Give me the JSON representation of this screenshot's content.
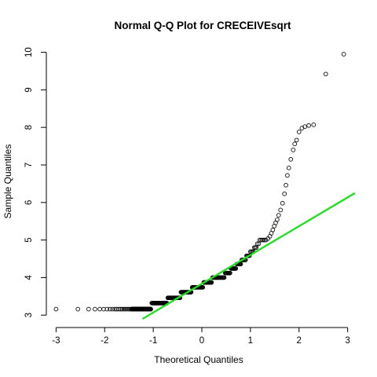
{
  "chart_data": {
    "type": "scatter",
    "title": "Normal Q-Q Plot for CRECEIVEsqrt",
    "xlabel": "Theoretical Quantiles",
    "ylabel": "Sample Quantiles",
    "xlim": [
      -3.2,
      3.2
    ],
    "ylim": [
      2.9,
      10.2
    ],
    "xticks": [
      -3,
      -2,
      -1,
      0,
      1,
      2,
      3
    ],
    "yticks": [
      3,
      4,
      5,
      6,
      7,
      8,
      9,
      10
    ],
    "grid": false,
    "point_style": "open-circle",
    "line_color": "#22dd22",
    "reference_line": {
      "x": [
        -1.22,
        3.15
      ],
      "y": [
        2.9,
        6.25
      ]
    },
    "clusters": [
      {
        "y": 3.16,
        "x_from": -3.0,
        "x_to": -1.05,
        "n": 160
      },
      {
        "y": 3.32,
        "x_from": -1.03,
        "x_to": -0.72,
        "n": 30
      },
      {
        "y": 3.46,
        "x_from": -0.7,
        "x_to": -0.45,
        "n": 24
      },
      {
        "y": 3.61,
        "x_from": -0.43,
        "x_to": -0.22,
        "n": 20
      },
      {
        "y": 3.74,
        "x_from": -0.2,
        "x_to": 0.02,
        "n": 20
      },
      {
        "y": 3.87,
        "x_from": 0.04,
        "x_to": 0.2,
        "n": 16
      },
      {
        "y": 4.0,
        "x_from": 0.22,
        "x_to": 0.46,
        "n": 20
      },
      {
        "y": 4.12,
        "x_from": 0.48,
        "x_to": 0.58,
        "n": 9
      },
      {
        "y": 4.24,
        "x_from": 0.6,
        "x_to": 0.7,
        "n": 9
      },
      {
        "y": 4.36,
        "x_from": 0.72,
        "x_to": 0.8,
        "n": 7
      },
      {
        "y": 4.47,
        "x_from": 0.82,
        "x_to": 0.9,
        "n": 6
      },
      {
        "y": 4.58,
        "x_from": 0.92,
        "x_to": 0.98,
        "n": 5
      },
      {
        "y": 4.69,
        "x_from": 1.0,
        "x_to": 1.06,
        "n": 4
      },
      {
        "y": 4.8,
        "x_from": 1.08,
        "x_to": 1.12,
        "n": 3
      },
      {
        "y": 4.9,
        "x_from": 1.14,
        "x_to": 1.17,
        "n": 2
      },
      {
        "y": 5.0,
        "x_from": 1.19,
        "x_to": 1.32,
        "n": 6
      }
    ],
    "tail_points": {
      "x": [
        1.36,
        1.4,
        1.43,
        1.46,
        1.49,
        1.52,
        1.55,
        1.58,
        1.62,
        1.66,
        1.7,
        1.73,
        1.76,
        1.79,
        1.83,
        1.88,
        1.91,
        1.95,
        2.0,
        2.06,
        2.12,
        2.2,
        2.3,
        2.55,
        2.92
      ],
      "y": [
        5.04,
        5.1,
        5.18,
        5.27,
        5.37,
        5.46,
        5.54,
        5.66,
        5.8,
        5.98,
        6.23,
        6.46,
        6.72,
        6.92,
        7.15,
        7.4,
        7.56,
        7.66,
        7.88,
        7.98,
        8.02,
        8.05,
        8.07,
        9.42,
        9.95
      ]
    }
  }
}
